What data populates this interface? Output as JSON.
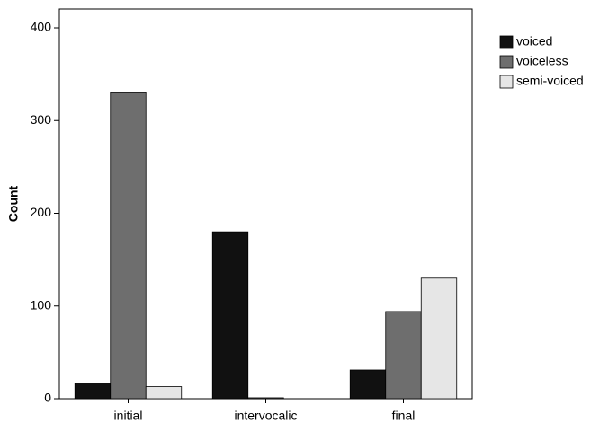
{
  "chart_data": {
    "type": "bar",
    "y_label": "Count",
    "categories": [
      "initial",
      "intervocalic",
      "final"
    ],
    "series": [
      {
        "name": "voiced",
        "color": "#111111",
        "values": [
          17,
          180,
          31
        ]
      },
      {
        "name": "voiceless",
        "color": "#6e6e6e",
        "values": [
          330,
          1,
          94
        ]
      },
      {
        "name": "semi-voiced",
        "color": "#e6e6e6",
        "values": [
          13,
          0,
          130
        ]
      }
    ],
    "ylim": [
      0,
      400
    ],
    "yticks": [
      0,
      100,
      200,
      300,
      400
    ],
    "legend": "right"
  }
}
